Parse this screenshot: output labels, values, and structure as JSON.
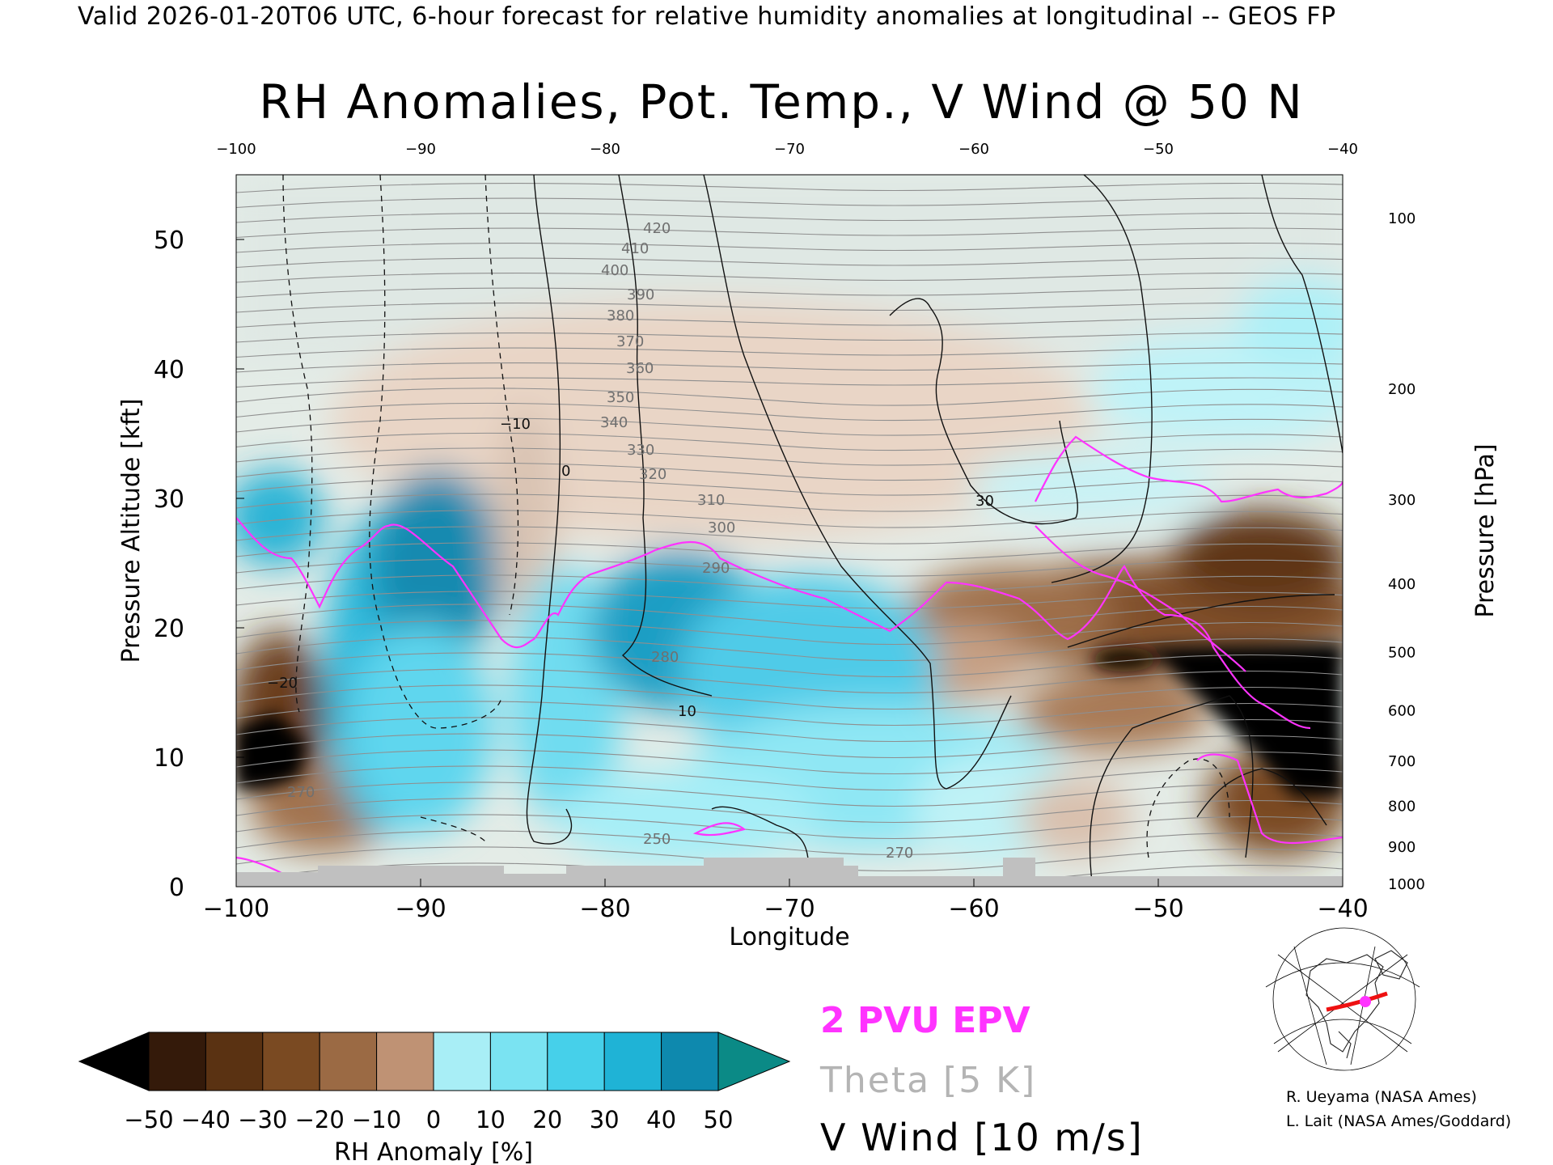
{
  "header": {
    "valid_line": "Valid 2026-01-20T06 UTC, 6-hour forecast for relative humidity anomalies at longitudinal -- GEOS FP"
  },
  "chart_data": {
    "type": "heatmap",
    "title": "RH Anomalies, Pot. Temp., V Wind @ 50 N",
    "xlabel": "Longitude",
    "ylabel_left": "Pressure Altitude [kft]",
    "ylabel_right": "Pressure [hPa]",
    "xlim": [
      -100,
      -40
    ],
    "ylim_kft": [
      0,
      55
    ],
    "x_ticks": [
      "−100",
      "−90",
      "−80",
      "−70",
      "−60",
      "−50",
      "−40"
    ],
    "x_ticks_top": [
      "−100",
      "−90",
      "−80",
      "−70",
      "−60",
      "−50",
      "−40"
    ],
    "y_ticks_kft": [
      "0",
      "10",
      "20",
      "30",
      "40",
      "50"
    ],
    "y_ticks_hpa": [
      "100",
      "200",
      "300",
      "400",
      "500",
      "600",
      "700",
      "800",
      "900",
      "1000"
    ],
    "theta_labels": [
      "420",
      "410",
      "400",
      "390",
      "380",
      "370",
      "360",
      "350",
      "340",
      "330",
      "320",
      "310",
      "300",
      "290",
      "280",
      "270",
      "260",
      "250"
    ],
    "vwind_labels": [
      "0",
      "10",
      "30",
      "−10",
      "−20"
    ],
    "colorbar": {
      "label": "RH Anomaly [%]",
      "ticks": [
        "−50",
        "−40",
        "−30",
        "−20",
        "−10",
        "0",
        "10",
        "20",
        "30",
        "40",
        "50"
      ],
      "colors": [
        "#341a0a",
        "#5a3212",
        "#7a4a22",
        "#9b6a44",
        "#bf9274",
        "#ead3c4",
        "#d4f4f8",
        "#a8eef6",
        "#7ae3f2",
        "#46d0ea",
        "#1fb3d6",
        "#0e89ae"
      ],
      "under_color": "#000000",
      "over_color": "#0b8a86"
    }
  },
  "legend": {
    "pvu": "2 PVU EPV",
    "pvu_color": "#ff33ff",
    "theta": "Theta [5 K]",
    "theta_color": "#b4b4b4",
    "vwind": "V Wind [10 m/s]"
  },
  "credits": {
    "line1": "R. Ueyama (NASA Ames)",
    "line2": "L. Lait (NASA Ames/Goddard)"
  }
}
